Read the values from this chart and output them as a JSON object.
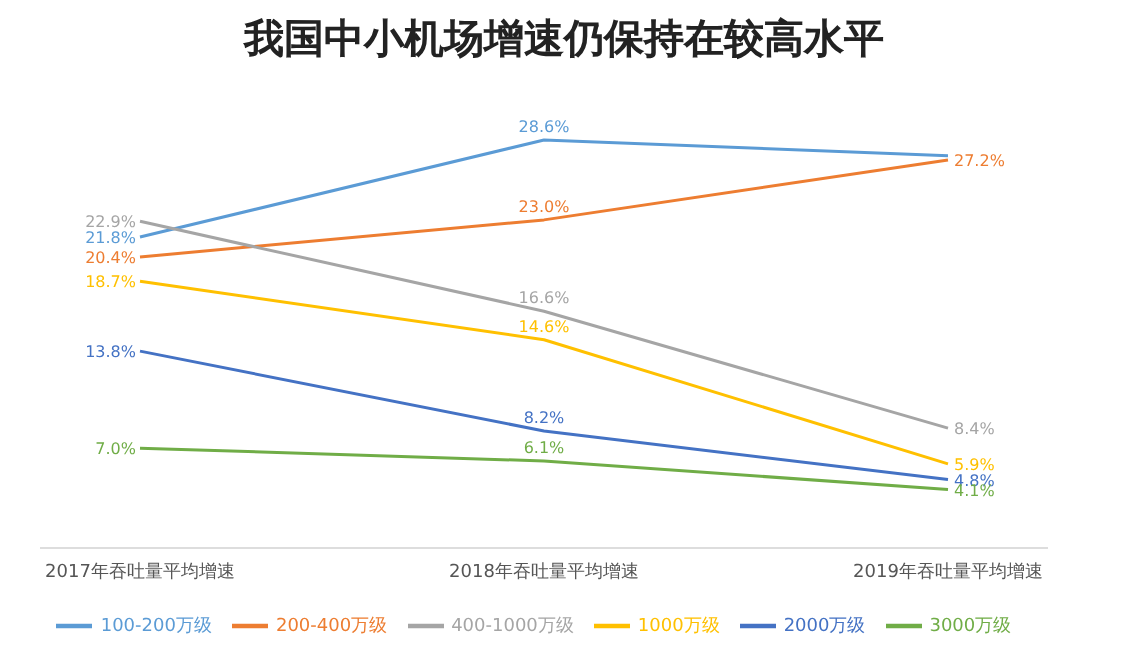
{
  "chart_data": {
    "type": "line",
    "title": "我国中小机场增速仍保持在较高水平",
    "categories": [
      "2017年吞吐量平均增速",
      "2018年吞吐量平均增速",
      "2019年吞吐量平均增速"
    ],
    "marker": "none",
    "legend": "bottom",
    "series": [
      {
        "name": "100-200万级",
        "color": "#5b9bd5",
        "values": [
          21.8,
          28.6,
          27.5
        ],
        "value_labels": [
          "21.8%",
          "28.6%",
          null
        ]
      },
      {
        "name": "200-400万级",
        "color": "#ed7d31",
        "values": [
          20.4,
          23.0,
          27.2
        ],
        "value_labels": [
          "20.4%",
          "23.0%",
          "27.2%"
        ]
      },
      {
        "name": "400-1000万级",
        "color": "#a5a5a5",
        "values": [
          22.9,
          16.6,
          8.4
        ],
        "value_labels": [
          "22.9%",
          "16.6%",
          "8.4%"
        ]
      },
      {
        "name": "1000万级",
        "color": "#ffc000",
        "values": [
          18.7,
          14.6,
          5.9
        ],
        "value_labels": [
          "18.7%",
          "14.6%",
          "5.9%"
        ]
      },
      {
        "name": "2000万级",
        "color": "#4472c4",
        "values": [
          13.8,
          8.2,
          4.8
        ],
        "value_labels": [
          "13.8%",
          "8.2%",
          "4.8%"
        ]
      },
      {
        "name": "3000万级",
        "color": "#70ad47",
        "values": [
          7.0,
          6.1,
          4.1
        ],
        "value_labels": [
          "7.0%",
          "6.1%",
          "4.1%"
        ]
      }
    ]
  }
}
